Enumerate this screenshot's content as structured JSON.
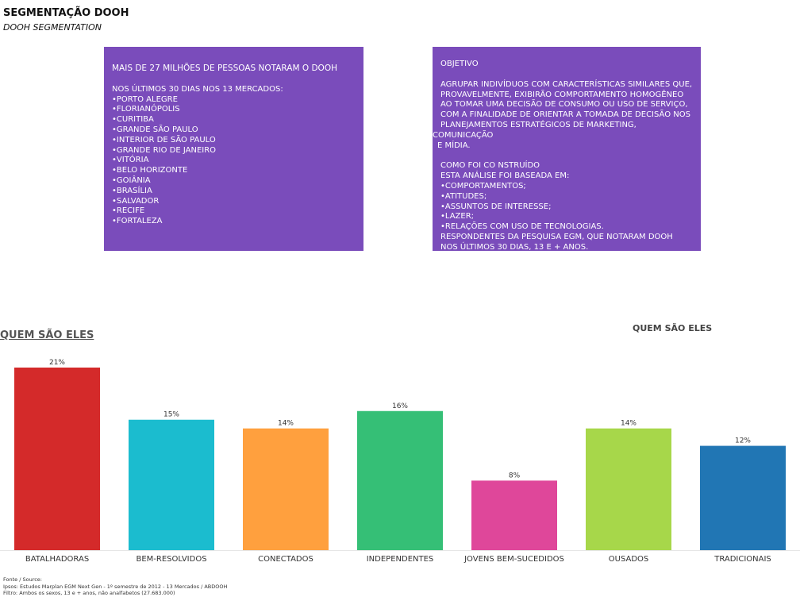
{
  "header": {
    "title": "SEGMENTAÇÃO DOOH",
    "subtitle": "DOOH SEGMENTATION"
  },
  "left_box": {
    "headline": "MAIS DE 27 MILHÕES DE PESSOAS NOTARAM O DOOH",
    "subheading": "NOS ÚLTIMOS 30 DIAS NOS 13 MERCADOS:",
    "markets": [
      "PORTO ALEGRE",
      "FLORIANÓPOLIS",
      "CURITIBA",
      "GRANDE SÃO PAULO",
      "INTERIOR DE SÃO PAULO",
      "GRANDE RIO DE JANEIRO",
      "VITÓRIA",
      "BELO HORIZONTE",
      "GOIÂNIA",
      "BRASÍLIA",
      "SALVADOR",
      "RECIFE",
      "FORTALEZA"
    ]
  },
  "right_box": {
    "heading": "OBJETIVO",
    "objective_lines": [
      "AGRUPAR INDIVÍDUOS COM CARACTERÍSTICAS SIMILARES QUE,",
      "PROVAVELMENTE, EXIBIRÃO COMPORTAMENTO HOMOGÊNEO",
      "AO TOMAR UMA DECISÃO DE CONSUMO OU USO DE SERVIÇO,",
      "COM A FINALIDADE DE ORIENTAR A TOMADA DE DECISÃO NOS",
      "PLANEJAMENTOS ESTRATÉGICOS DE MARKETING,",
      "COMUNICAÇÃO",
      "E MÍDIA."
    ],
    "method_title": "COMO FOI CO NSTRUÍDO",
    "method_intro": "ESTA ANÁLISE FOI BASEADA EM:",
    "method_items": [
      "COMPORTAMENTOS;",
      "ATITUDES;",
      "ASSUNTOS DE INTERESSE;",
      "LAZER;",
      "RELAÇÕES COM USO DE TECNOLOGIAS."
    ],
    "respondents_lines": [
      "RESPONDENTES DA PESQUISA EGM, QUE NOTARAM DOOH",
      "NOS ÚLTIMOS 30 DIAS, 13 E + ANOS."
    ]
  },
  "section": {
    "title": "QUEM SÃO ELES"
  },
  "chart_data": {
    "type": "bar",
    "title": "QUEM SÃO ELES",
    "categories": [
      "BATALHADORAS",
      "BEM-RESOLVIDOS",
      "CONECTADOS",
      "INDEPENDENTES",
      "JOVENS BEM-SUCEDIDOS",
      "OUSADOS",
      "TRADICIONAIS"
    ],
    "values": [
      21,
      15,
      14,
      16,
      8,
      14,
      12
    ],
    "value_labels": [
      "21%",
      "15%",
      "14%",
      "16%",
      "8%",
      "14%",
      "12%"
    ],
    "colors": [
      "#d42a2a",
      "#1bbccf",
      "#ffa03e",
      "#35bf76",
      "#df479a",
      "#a7d74a",
      "#2176b4"
    ],
    "unit": "%",
    "ylim": [
      0,
      21
    ],
    "grid": false,
    "legend": "none"
  },
  "footer": {
    "lines": [
      "Fonte / Source:",
      "Ipsos: Estudos Marplan EGM Next Gen - 1º semestre de 2012 - 13 Mercados / ABDOOH",
      "Filtro: Ambos os sexos, 13 e + anos, não analfabetos (27.683.000)"
    ]
  }
}
